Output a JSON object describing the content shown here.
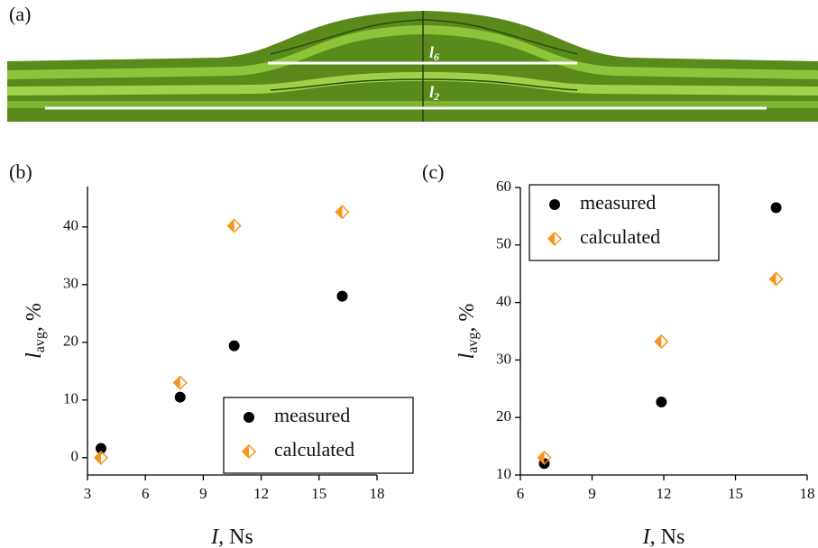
{
  "panel_labels": [
    "(a)",
    "(b)",
    "(c)"
  ],
  "diagram": {
    "line_labels": [
      {
        "symbol": "l",
        "subscript": "6"
      },
      {
        "symbol": "l",
        "subscript": "2"
      }
    ]
  },
  "chart_data": [
    {
      "type": "scatter",
      "x_label": [
        "I",
        ", Ns"
      ],
      "y_label": [
        "l",
        "avg",
        ", %"
      ],
      "xlim": [
        3,
        18
      ],
      "xticks": [
        3,
        6,
        9,
        12,
        15,
        18
      ],
      "ylim": [
        -3,
        47
      ],
      "yticks": [
        0,
        10,
        20,
        30,
        40
      ],
      "legend": "lower right",
      "series": [
        {
          "name": "measured",
          "marker": "circle",
          "color": "#000000",
          "x": [
            3.7,
            7.8,
            10.6,
            16.2
          ],
          "values": [
            1.6,
            10.5,
            19.4,
            28
          ]
        },
        {
          "name": "calculated",
          "marker": "half-diamond",
          "color": "#f7941d",
          "x": [
            3.7,
            7.8,
            10.6,
            16.2
          ],
          "values": [
            0,
            13,
            40.2,
            42.6
          ]
        }
      ]
    },
    {
      "type": "scatter",
      "x_label": [
        "I",
        ", Ns"
      ],
      "y_label": [
        "l",
        "avg",
        ", %"
      ],
      "xlim": [
        6,
        18
      ],
      "xticks": [
        6,
        9,
        12,
        15,
        18
      ],
      "ylim": [
        10,
        60
      ],
      "yticks": [
        10,
        20,
        30,
        40,
        50,
        60
      ],
      "legend": "upper left",
      "series": [
        {
          "name": "measured",
          "marker": "circle",
          "color": "#000000",
          "x": [
            7,
            11.9,
            16.7
          ],
          "values": [
            12,
            22.7,
            56.5
          ]
        },
        {
          "name": "calculated",
          "marker": "half-diamond",
          "color": "#f7941d",
          "x": [
            7,
            11.9,
            16.7
          ],
          "values": [
            13,
            33.2,
            44.1
          ]
        }
      ]
    }
  ]
}
